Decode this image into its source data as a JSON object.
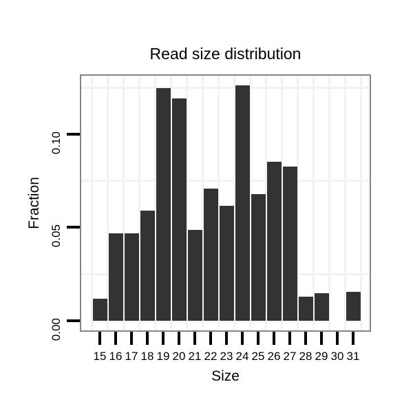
{
  "chart_data": {
    "type": "bar",
    "title": "Read size distribution",
    "xlabel": "Size",
    "ylabel": "Fraction",
    "categories": [
      15,
      16,
      17,
      18,
      19,
      20,
      21,
      22,
      23,
      24,
      25,
      26,
      27,
      28,
      29,
      30,
      31
    ],
    "values": [
      0.0116,
      0.0467,
      0.0468,
      0.0589,
      0.1248,
      0.1192,
      0.0485,
      0.0707,
      0.0615,
      0.1262,
      0.0679,
      0.0851,
      0.0825,
      0.0128,
      0.0147,
      0,
      0.0153
    ],
    "y_ticks": [
      {
        "label": "0.00",
        "value": 0
      },
      {
        "label": "0.05",
        "value": 0.05
      },
      {
        "label": "0.10",
        "value": 0.1
      }
    ],
    "minor_gridline_values": [
      0.025,
      0.075,
      0.125
    ],
    "ylim": [
      0,
      0.132
    ],
    "grid": "faint minor gridlines only",
    "legend": "none",
    "colors": {
      "bar": "#333333",
      "panel_border": "#848484",
      "gridline": "#f2f2f2",
      "axis_tick": "#000000",
      "text": "#000000",
      "background": "#ffffff"
    }
  }
}
